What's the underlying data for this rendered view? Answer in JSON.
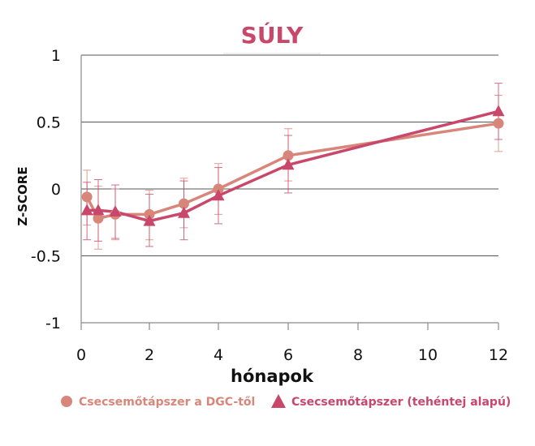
{
  "chart_data": {
    "type": "line",
    "title": "SÚLY",
    "xlabel": "hónapok",
    "ylabel": "Z-SCORE",
    "x_scale": "piecewise",
    "x_ticks": [
      0,
      2,
      4,
      6,
      8,
      10,
      12
    ],
    "x_tick_labels": [
      "0",
      "2",
      "4",
      "6",
      "8",
      "10",
      "12"
    ],
    "y_ticks": [
      1,
      0.5,
      0,
      -0.5,
      -1
    ],
    "y_tick_labels": [
      "1",
      "0.5",
      "0",
      "-0.5",
      "-1"
    ],
    "xlim": [
      0,
      12
    ],
    "ylim": [
      -1,
      1
    ],
    "grid": "horizontal",
    "legend_position": "bottom",
    "series": [
      {
        "name": "Csecsemőtápszer a DGC-től",
        "marker": "circle",
        "color": "#d9867a",
        "points": [
          {
            "x": 0.17,
            "y": -0.06,
            "low": -0.27,
            "high": 0.14
          },
          {
            "x": 0.5,
            "y": -0.22,
            "low": -0.45,
            "high": 0.02
          },
          {
            "x": 1,
            "y": -0.19,
            "low": -0.38,
            "high": 0.0
          },
          {
            "x": 2,
            "y": -0.19,
            "low": -0.38,
            "high": -0.01
          },
          {
            "x": 3,
            "y": -0.11,
            "low": -0.29,
            "high": 0.08
          },
          {
            "x": 4,
            "y": 0.0,
            "low": -0.19,
            "high": 0.19
          },
          {
            "x": 6,
            "y": 0.25,
            "low": 0.06,
            "high": 0.45
          },
          {
            "x": 12,
            "y": 0.49,
            "low": 0.28,
            "high": 0.7
          }
        ]
      },
      {
        "name": "Csecsemőtápszer (tehéntej alapú)",
        "marker": "triangle",
        "color": "#c9476a",
        "points": [
          {
            "x": 0.17,
            "y": -0.16,
            "low": -0.38,
            "high": 0.05
          },
          {
            "x": 0.5,
            "y": -0.16,
            "low": -0.39,
            "high": 0.07
          },
          {
            "x": 1,
            "y": -0.17,
            "low": -0.37,
            "high": 0.03
          },
          {
            "x": 2,
            "y": -0.24,
            "low": -0.43,
            "high": -0.04
          },
          {
            "x": 3,
            "y": -0.18,
            "low": -0.38,
            "high": 0.06
          },
          {
            "x": 4,
            "y": -0.05,
            "low": -0.26,
            "high": 0.16
          },
          {
            "x": 6,
            "y": 0.18,
            "low": -0.03,
            "high": 0.4
          },
          {
            "x": 12,
            "y": 0.58,
            "low": 0.37,
            "high": 0.79
          }
        ]
      }
    ]
  },
  "colors": {
    "title": "#c9476a",
    "grid": "#555555",
    "axis": "#8a8a8a"
  }
}
